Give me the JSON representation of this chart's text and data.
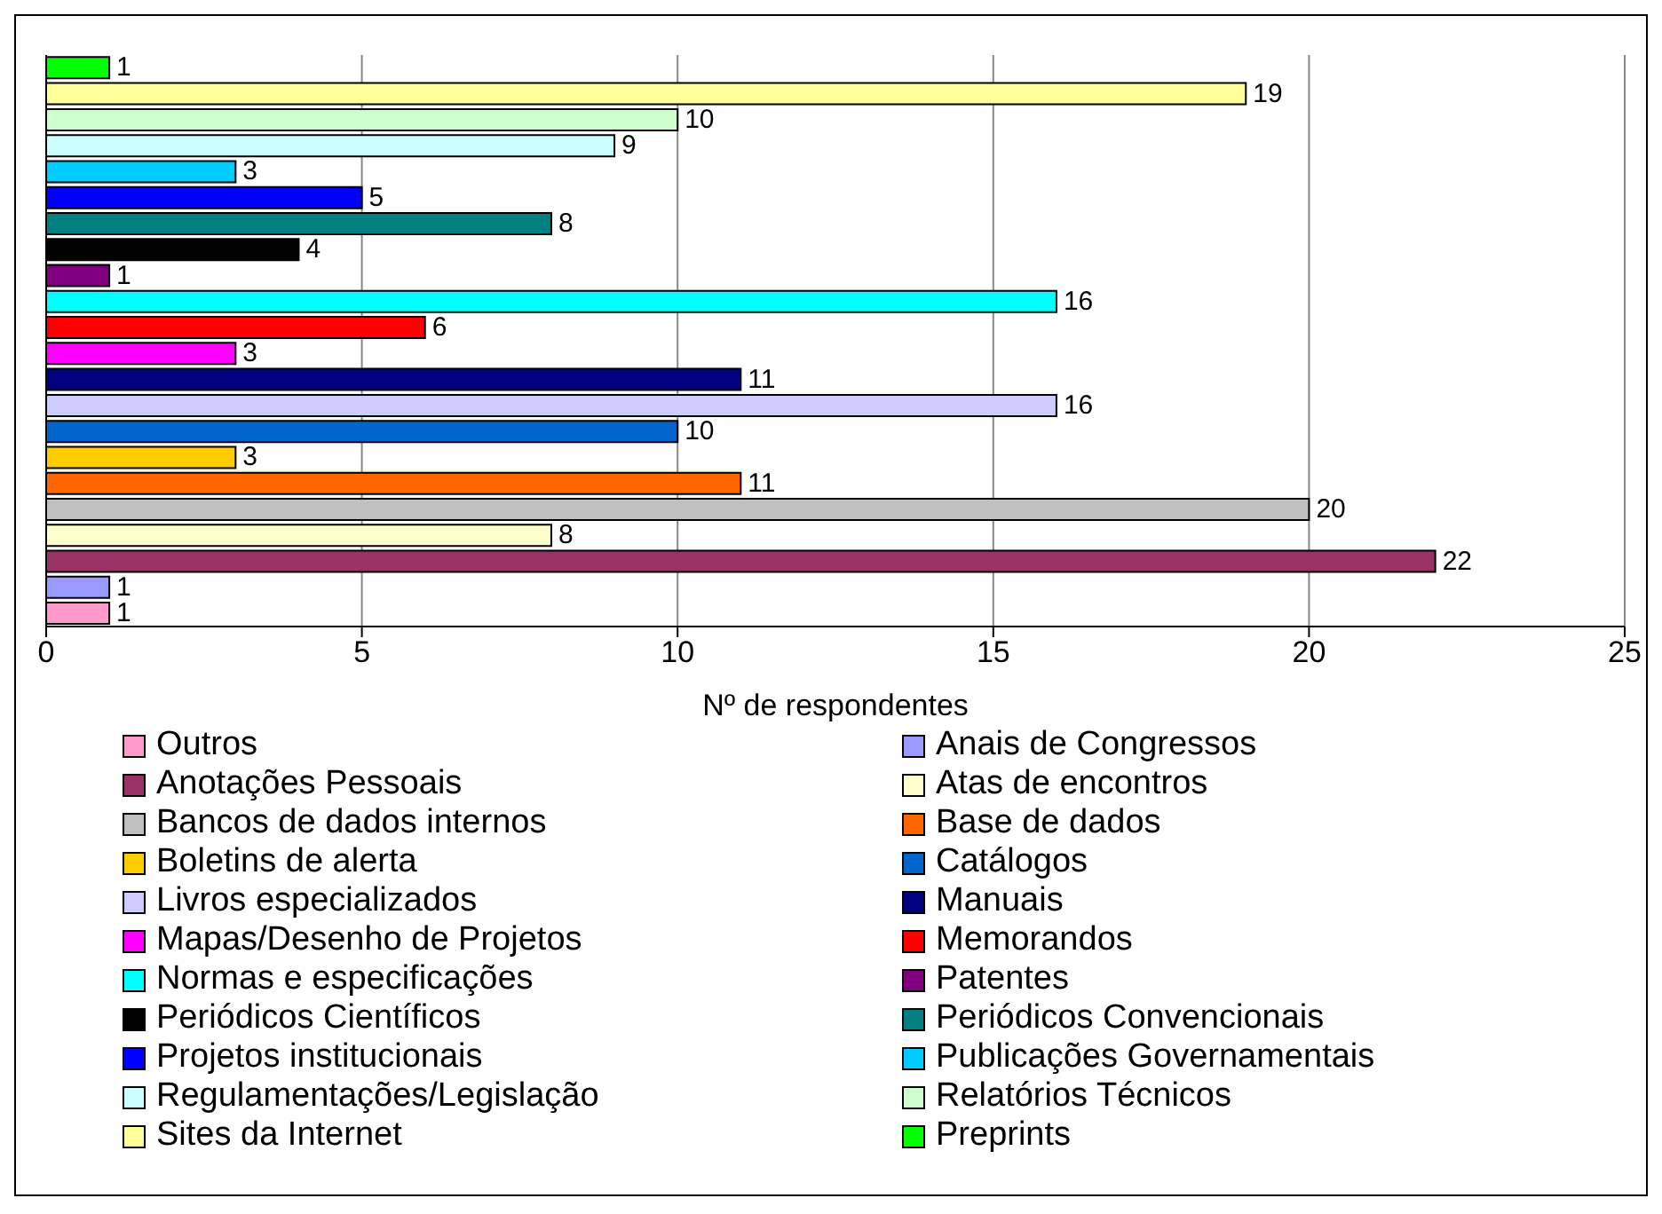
{
  "chart_data": {
    "type": "bar",
    "orientation": "horizontal",
    "stacked": true,
    "xlabel": "Nº de respondentes",
    "categories": [
      null,
      null,
      null,
      null,
      null,
      null,
      null,
      null,
      null,
      null,
      null,
      null,
      null,
      null,
      null,
      null,
      null,
      null,
      null,
      null,
      null,
      null
    ],
    "xlim": [
      0,
      25
    ],
    "xticks": [
      0,
      5,
      10,
      15,
      20,
      25
    ],
    "grid": "x",
    "legend": "bottom",
    "data_labels": true,
    "tick_labels": "x",
    "series": [
      {
        "name": "Outros",
        "color": "#ff99cc",
        "values": [
          null,
          null,
          null,
          null,
          null,
          null,
          null,
          null,
          null,
          null,
          null,
          null,
          null,
          null,
          null,
          null,
          null,
          null,
          null,
          null,
          null,
          1
        ]
      },
      {
        "name": "Anais de Congressos",
        "color": "#9999ff",
        "values": [
          null,
          null,
          null,
          null,
          null,
          null,
          null,
          null,
          null,
          null,
          null,
          null,
          null,
          null,
          null,
          null,
          null,
          null,
          null,
          null,
          1,
          null
        ]
      },
      {
        "name": "Anotações Pessoais",
        "color": "#993366",
        "values": [
          null,
          null,
          null,
          null,
          null,
          null,
          null,
          null,
          null,
          null,
          null,
          null,
          null,
          null,
          null,
          null,
          null,
          null,
          null,
          22,
          null,
          null
        ]
      },
      {
        "name": "Atas de encontros",
        "color": "#ffffcc",
        "values": [
          null,
          null,
          null,
          null,
          null,
          null,
          null,
          null,
          null,
          null,
          null,
          null,
          null,
          null,
          null,
          null,
          null,
          null,
          8,
          null,
          null,
          null
        ]
      },
      {
        "name": "Bancos de dados internos",
        "color": "#c0c0c0",
        "values": [
          null,
          null,
          null,
          null,
          null,
          null,
          null,
          null,
          null,
          null,
          null,
          null,
          null,
          null,
          null,
          null,
          null,
          20,
          null,
          null,
          null,
          null
        ]
      },
      {
        "name": "Base de dados",
        "color": "#ff6600",
        "values": [
          null,
          null,
          null,
          null,
          null,
          null,
          null,
          null,
          null,
          null,
          null,
          null,
          null,
          null,
          null,
          null,
          11,
          null,
          null,
          null,
          null,
          null
        ]
      },
      {
        "name": "Boletins de alerta",
        "color": "#ffcc00",
        "values": [
          null,
          null,
          null,
          null,
          null,
          null,
          null,
          null,
          null,
          null,
          null,
          null,
          null,
          null,
          null,
          3,
          null,
          null,
          null,
          null,
          null,
          null
        ]
      },
      {
        "name": "Catálogos",
        "color": "#0066cc",
        "values": [
          null,
          null,
          null,
          null,
          null,
          null,
          null,
          null,
          null,
          null,
          null,
          null,
          null,
          null,
          10,
          null,
          null,
          null,
          null,
          null,
          null,
          null
        ]
      },
      {
        "name": "Livros especializados",
        "color": "#ccccff",
        "values": [
          null,
          null,
          null,
          null,
          null,
          null,
          null,
          null,
          null,
          null,
          null,
          null,
          null,
          16,
          null,
          null,
          null,
          null,
          null,
          null,
          null,
          null
        ]
      },
      {
        "name": "Manuais",
        "color": "#000080",
        "values": [
          null,
          null,
          null,
          null,
          null,
          null,
          null,
          null,
          null,
          null,
          null,
          null,
          11,
          null,
          null,
          null,
          null,
          null,
          null,
          null,
          null,
          null
        ]
      },
      {
        "name": "Mapas/Desenho de Projetos",
        "color": "#ff00ff",
        "values": [
          null,
          null,
          null,
          null,
          null,
          null,
          null,
          null,
          null,
          null,
          null,
          3,
          null,
          null,
          null,
          null,
          null,
          null,
          null,
          null,
          null,
          null
        ]
      },
      {
        "name": "Memorandos",
        "color": "#ff0000",
        "values": [
          null,
          null,
          null,
          null,
          null,
          null,
          null,
          null,
          null,
          null,
          6,
          null,
          null,
          null,
          null,
          null,
          null,
          null,
          null,
          null,
          null,
          null
        ]
      },
      {
        "name": "Normas e especificações",
        "color": "#00ffff",
        "values": [
          null,
          null,
          null,
          null,
          null,
          null,
          null,
          null,
          null,
          16,
          null,
          null,
          null,
          null,
          null,
          null,
          null,
          null,
          null,
          null,
          null,
          null
        ]
      },
      {
        "name": "Patentes",
        "color": "#800080",
        "values": [
          null,
          null,
          null,
          null,
          null,
          null,
          null,
          null,
          1,
          null,
          null,
          null,
          null,
          null,
          null,
          null,
          null,
          null,
          null,
          null,
          null,
          null
        ]
      },
      {
        "name": "Periódicos Científicos",
        "color": "#000000",
        "values": [
          null,
          null,
          null,
          null,
          null,
          null,
          null,
          4,
          null,
          null,
          null,
          null,
          null,
          null,
          null,
          null,
          null,
          null,
          null,
          null,
          null,
          null
        ]
      },
      {
        "name": "Periódicos Convencionais",
        "color": "#008080",
        "values": [
          null,
          null,
          null,
          null,
          null,
          null,
          8,
          null,
          null,
          null,
          null,
          null,
          null,
          null,
          null,
          null,
          null,
          null,
          null,
          null,
          null,
          null
        ]
      },
      {
        "name": "Projetos institucionais",
        "color": "#0000ff",
        "values": [
          null,
          null,
          null,
          null,
          null,
          5,
          null,
          null,
          null,
          null,
          null,
          null,
          null,
          null,
          null,
          null,
          null,
          null,
          null,
          null,
          null,
          null
        ]
      },
      {
        "name": "Publicações Governamentais",
        "color": "#00ccff",
        "values": [
          null,
          null,
          null,
          null,
          3,
          null,
          null,
          null,
          null,
          null,
          null,
          null,
          null,
          null,
          null,
          null,
          null,
          null,
          null,
          null,
          null,
          null
        ]
      },
      {
        "name": "Regulamentações/Legislação",
        "color": "#ccffff",
        "values": [
          null,
          null,
          null,
          9,
          null,
          null,
          null,
          null,
          null,
          null,
          null,
          null,
          null,
          null,
          null,
          null,
          null,
          null,
          null,
          null,
          null,
          null
        ]
      },
      {
        "name": "Relatórios Técnicos",
        "color": "#ccffcc",
        "values": [
          null,
          null,
          10,
          null,
          null,
          null,
          null,
          null,
          null,
          null,
          null,
          null,
          null,
          null,
          null,
          null,
          null,
          null,
          null,
          null,
          null,
          null
        ]
      },
      {
        "name": "Sites da Internet",
        "color": "#ffff99",
        "values": [
          null,
          19,
          null,
          null,
          null,
          null,
          null,
          null,
          null,
          null,
          null,
          null,
          null,
          null,
          null,
          null,
          null,
          null,
          null,
          null,
          null,
          null
        ]
      },
      {
        "name": "Preprints",
        "color": "#00ff00",
        "values": [
          1,
          null,
          null,
          null,
          null,
          null,
          null,
          null,
          null,
          null,
          null,
          null,
          null,
          null,
          null,
          null,
          null,
          null,
          null,
          null,
          null,
          null
        ]
      }
    ]
  }
}
